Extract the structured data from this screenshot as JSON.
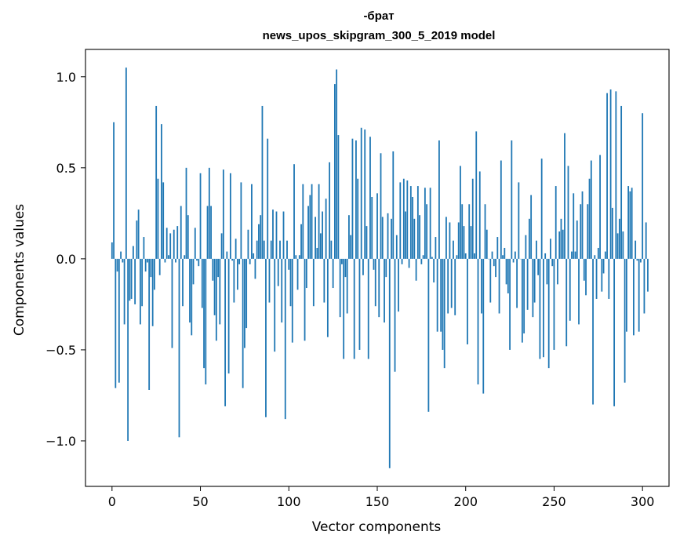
{
  "chart_data": {
    "type": "bar",
    "title": "-брат",
    "subtitle": "news_upos_skipgram_300_5_2019 model",
    "xlabel": "Vector components",
    "ylabel": "Components values",
    "xlim": [
      -15,
      315
    ],
    "ylim": [
      -1.25,
      1.15
    ],
    "xticks": [
      0,
      50,
      100,
      150,
      200,
      250,
      300
    ],
    "yticks": [
      -1.0,
      -0.5,
      0.0,
      0.5,
      1.0
    ],
    "xtick_labels": [
      "0",
      "50",
      "100",
      "150",
      "200",
      "250",
      "300"
    ],
    "ytick_labels": [
      "−1.0",
      "−0.5",
      "0.0",
      "0.5",
      "1.0"
    ],
    "bar_color": "#1f77b4",
    "grid": false,
    "values": [
      0.09,
      0.75,
      -0.71,
      -0.07,
      -0.68,
      0.04,
      -0.02,
      -0.36,
      1.05,
      -1.0,
      -0.23,
      -0.22,
      0.07,
      -0.25,
      0.21,
      0.27,
      -0.36,
      -0.26,
      0.12,
      -0.07,
      -0.02,
      -0.72,
      -0.1,
      -0.37,
      -0.17,
      0.84,
      0.44,
      -0.09,
      0.74,
      0.42,
      -0.02,
      0.17,
      0.02,
      0.14,
      -0.49,
      0.16,
      -0.02,
      0.18,
      -0.98,
      0.29,
      -0.26,
      0.02,
      0.5,
      0.24,
      -0.35,
      -0.42,
      -0.14,
      0.17,
      -0.01,
      -0.04,
      0.47,
      -0.27,
      -0.6,
      -0.69,
      0.29,
      0.5,
      0.29,
      -0.12,
      -0.31,
      -0.45,
      -0.1,
      -0.36,
      0.14,
      0.49,
      -0.81,
      0.04,
      -0.63,
      0.47,
      -0.01,
      -0.24,
      0.11,
      -0.17,
      -0.03,
      0.42,
      -0.71,
      -0.49,
      -0.38,
      0.16,
      -0.03,
      0.41,
      0.03,
      -0.11,
      0.1,
      0.19,
      0.24,
      0.84,
      0.1,
      -0.87,
      0.66,
      -0.24,
      0.1,
      0.27,
      -0.51,
      0.26,
      -0.15,
      0.1,
      -0.35,
      0.26,
      -0.88,
      0.1,
      -0.06,
      -0.26,
      -0.46,
      0.52,
      0.02,
      -0.17,
      0.02,
      0.19,
      0.41,
      -0.45,
      -0.16,
      0.29,
      0.35,
      0.41,
      -0.26,
      0.23,
      0.06,
      0.41,
      0.14,
      0.26,
      -0.24,
      0.33,
      -0.43,
      0.53,
      0.1,
      -0.16,
      0.96,
      1.04,
      0.68,
      -0.32,
      -0.03,
      -0.55,
      -0.1,
      -0.3,
      0.24,
      0.13,
      0.66,
      -0.55,
      0.65,
      0.44,
      -0.5,
      0.72,
      -0.09,
      0.71,
      0.18,
      -0.55,
      0.67,
      0.34,
      -0.06,
      -0.26,
      0.36,
      -0.32,
      0.58,
      0.23,
      -0.35,
      -0.1,
      0.25,
      -1.15,
      0.22,
      0.59,
      -0.62,
      0.13,
      -0.29,
      0.42,
      -0.03,
      0.44,
      0.26,
      0.43,
      -0.05,
      0.4,
      0.34,
      0.22,
      -0.12,
      0.4,
      0.24,
      -0.03,
      0.02,
      0.39,
      0.3,
      -0.84,
      0.39,
      0.01,
      -0.13,
      0.12,
      -0.4,
      0.65,
      -0.4,
      -0.5,
      -0.6,
      0.23,
      -0.3,
      0.2,
      -0.27,
      0.1,
      -0.31,
      0.02,
      0.2,
      0.51,
      0.3,
      0.18,
      0.03,
      -0.47,
      0.3,
      0.18,
      0.44,
      0.03,
      0.7,
      -0.69,
      0.48,
      -0.3,
      -0.74,
      0.3,
      0.16,
      0.0,
      -0.24,
      0.04,
      -0.04,
      -0.1,
      0.12,
      -0.3,
      0.54,
      0.02,
      0.06,
      -0.14,
      -0.19,
      -0.5,
      0.65,
      -0.02,
      0.04,
      -0.27,
      0.42,
      0.0,
      -0.46,
      -0.41,
      0.13,
      -0.28,
      0.22,
      0.35,
      -0.32,
      -0.24,
      0.1,
      -0.09,
      -0.55,
      0.55,
      -0.54,
      0.03,
      -0.14,
      -0.6,
      0.11,
      -0.04,
      -0.5,
      0.4,
      -0.14,
      0.15,
      0.22,
      0.16,
      0.69,
      -0.48,
      0.51,
      -0.34,
      0.04,
      0.36,
      0.04,
      0.21,
      -0.36,
      0.3,
      0.37,
      -0.12,
      -0.2,
      0.3,
      0.44,
      0.54,
      -0.8,
      0.02,
      -0.22,
      0.06,
      0.57,
      -0.18,
      -0.08,
      0.04,
      0.91,
      -0.22,
      0.93,
      0.28,
      -0.81,
      0.92,
      0.14,
      0.22,
      0.84,
      0.15,
      -0.68,
      -0.4,
      0.4,
      0.37,
      0.39,
      -0.42,
      0.1,
      -0.01,
      -0.4,
      -0.02,
      0.8,
      -0.3,
      0.2,
      -0.18
    ]
  }
}
